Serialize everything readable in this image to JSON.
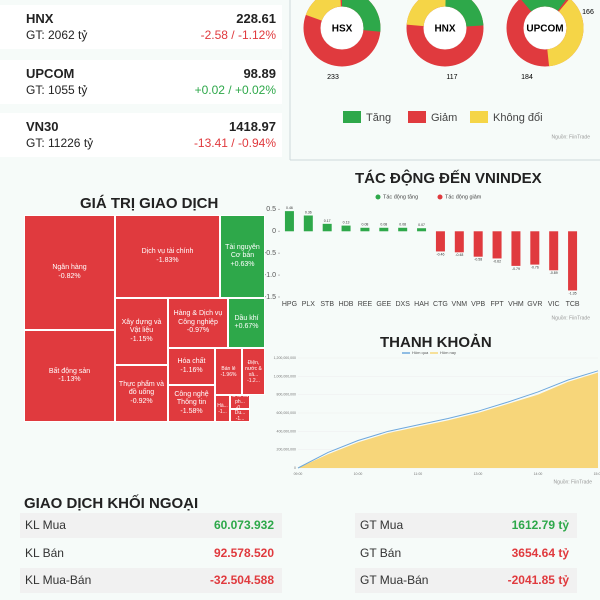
{
  "indices": [
    {
      "name": "HNX",
      "value": "228.61",
      "gt": "GT: 2062 tỷ",
      "change": "-2.58 / -1.12%",
      "color": "#e03a3e"
    },
    {
      "name": "UPCOM",
      "value": "98.89",
      "gt": "GT: 1055 tỷ",
      "change": "+0.02 / +0.02%",
      "color": "#2ea84a"
    },
    {
      "name": "VN30",
      "value": "1418.97",
      "gt": "GT: 11226 tỷ",
      "change": "-13.41 / -0.94%",
      "color": "#e03a3e"
    }
  ],
  "breadth": {
    "markets": [
      {
        "name": "HSX",
        "labels": [
          "233"
        ]
      },
      {
        "name": "HNX",
        "labels": [
          "117"
        ]
      },
      {
        "name": "UPCOM",
        "labels": [
          "184",
          "166"
        ]
      }
    ],
    "legend": [
      {
        "name": "Tăng",
        "color": "#2ea84a"
      },
      {
        "name": "Giảm",
        "color": "#e03a3e"
      },
      {
        "name": "Không đổi",
        "color": "#f5d547"
      }
    ],
    "source": "Nguồn: FiinTrade"
  },
  "treemap": {
    "title": "GIÁ TRỊ GIAO DỊCH",
    "cells": [
      {
        "name": "Ngân hàng",
        "change": "-0.82%"
      },
      {
        "name": "Bất động sản",
        "change": "-1.13%"
      },
      {
        "name": "Dịch vụ tài chính",
        "change": "-1.83%"
      },
      {
        "name": "Tài nguyên Cơ bản",
        "change": "+0.63%"
      },
      {
        "name": "Xây dựng và Vật liệu",
        "change": "-1.15%"
      },
      {
        "name": "Thực phẩm và đồ uống",
        "change": "-0.92%"
      },
      {
        "name": "Hàng & Dịch vụ Công nghiệp",
        "change": "-0.97%"
      },
      {
        "name": "Dầu khí",
        "change": "+0.67%"
      },
      {
        "name": "Hóa chất",
        "change": "-1.16%"
      },
      {
        "name": "Công nghệ Thông tin",
        "change": "-1.58%"
      },
      {
        "name": "Bán lẻ",
        "change": "-1.96%"
      },
      {
        "name": "Điện, nước & xă...",
        "change": "-1.2..."
      },
      {
        "name": "Hà...",
        "change": "-1..."
      },
      {
        "name": "Ô tô và ph...",
        "change": "-0..."
      },
      {
        "name": "Du...",
        "change": "-1..."
      }
    ]
  },
  "chart_data": [
    {
      "type": "bar",
      "title": "TÁC ĐỘNG ĐẾN VNINDEX",
      "categories": [
        "HPG",
        "PLX",
        "STB",
        "HDB",
        "REE",
        "GEE",
        "DXS",
        "HAH",
        "CTG",
        "VNM",
        "VPB",
        "FPT",
        "VHM",
        "GVR",
        "VIC",
        "TCB"
      ],
      "values": [
        0.46,
        0.36,
        0.17,
        0.13,
        0.08,
        0.08,
        0.08,
        0.07,
        -0.46,
        -0.48,
        -0.58,
        -0.62,
        -0.79,
        -0.76,
        -0.89,
        -1.35
      ],
      "legend": [
        {
          "name": "Tác động tăng",
          "color": "#2ea84a"
        },
        {
          "name": "Tác động giảm",
          "color": "#e03a3e"
        }
      ],
      "ylim": [
        -1.5,
        0.6
      ],
      "yticks": [
        0.5,
        0,
        -0.5,
        {
          "value": -1,
          "label": "-1.0"
        },
        -1.5
      ],
      "source": "Nguồn: FiinTrade"
    },
    {
      "type": "line",
      "title": "THANH KHOẢN",
      "categories": [
        "09:00",
        null,
        "10:00",
        null,
        "11:00",
        null,
        "13:00",
        null,
        "14:00",
        null,
        "15:00"
      ],
      "series": [
        {
          "name": "Hôm qua",
          "color": "#6fa8dc",
          "values": [
            0,
            170000000,
            300000000,
            400000000,
            470000000,
            540000000,
            620000000,
            720000000,
            830000000,
            960000000,
            1060000000
          ]
        },
        {
          "name": "Hôm nay",
          "color": "#f7d67a",
          "values": [
            0,
            150000000,
            280000000,
            380000000,
            450000000,
            520000000,
            600000000,
            700000000,
            800000000,
            940000000,
            1040000000
          ],
          "area": true
        }
      ],
      "ylim": [
        0,
        1200000000
      ],
      "yticks": [
        0,
        {
          "value": 200000000,
          "label": "200,000,000"
        },
        {
          "value": 400000000,
          "label": "400,000,000"
        },
        {
          "value": 600000000,
          "label": "600,000,000"
        },
        {
          "value": 800000000,
          "label": "800,000,000"
        },
        {
          "value": 1000000000,
          "label": "1,000,000,000"
        },
        {
          "value": 1200000000,
          "label": "1,200,000,000"
        }
      ],
      "source": "Nguồn: FiinTrade"
    }
  ],
  "foreign": {
    "title": "GIAO DỊCH KHỐI NGOẠI",
    "left": [
      {
        "label": "KL Mua",
        "value": "60.073.932",
        "color": "#2ea84a"
      },
      {
        "label": "KL Bán",
        "value": "92.578.520",
        "color": "#e03a3e"
      },
      {
        "label": "KL Mua-Bán",
        "value": "-32.504.588",
        "color": "#e03a3e"
      }
    ],
    "right": [
      {
        "label": "GT Mua",
        "value": "1612.79 tỷ",
        "color": "#2ea84a"
      },
      {
        "label": "GT Bán",
        "value": "3654.64 tỷ",
        "color": "#e03a3e"
      },
      {
        "label": "GT Mua-Bán",
        "value": "-2041.85 tỷ",
        "color": "#e03a3e"
      }
    ]
  }
}
